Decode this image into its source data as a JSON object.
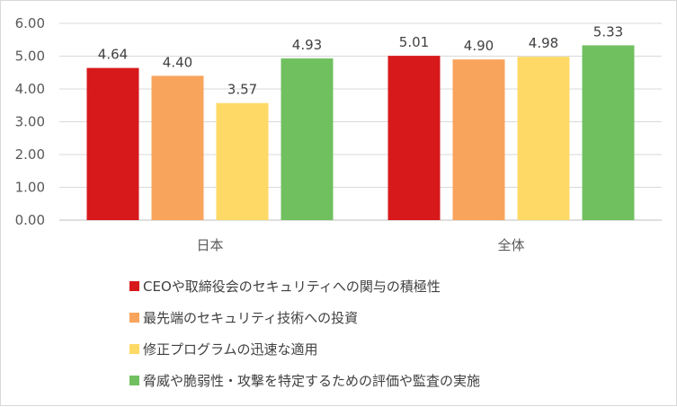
{
  "chart_data": {
    "type": "bar",
    "categories": [
      "日本",
      "全体"
    ],
    "series": [
      {
        "name": "CEOや取締役会のセキュリティへの関与の積極性",
        "values": [
          4.64,
          5.01
        ],
        "color": "#d7191c"
      },
      {
        "name": "最先端のセキュリティ技術への投資",
        "values": [
          4.4,
          4.9
        ],
        "color": "#f8a45c"
      },
      {
        "name": "修正プログラムの迅速な適用",
        "values": [
          3.57,
          4.98
        ],
        "color": "#ffd966"
      },
      {
        "name": "脅威や脆弱性・攻撃を特定するための評価や監査の実施",
        "values": [
          4.93,
          5.33
        ],
        "color": "#70c060"
      }
    ],
    "ylim": [
      0,
      6
    ],
    "yticks": [
      "0.00",
      "1.00",
      "2.00",
      "3.00",
      "4.00",
      "5.00",
      "6.00"
    ],
    "data_labels": [
      [
        "4.64",
        "5.01"
      ],
      [
        "4.40",
        "4.90"
      ],
      [
        "3.57",
        "4.98"
      ],
      [
        "4.93",
        "5.33"
      ]
    ],
    "title": "",
    "xlabel": "",
    "ylabel": "",
    "grid": true,
    "legend_position": "bottom"
  }
}
